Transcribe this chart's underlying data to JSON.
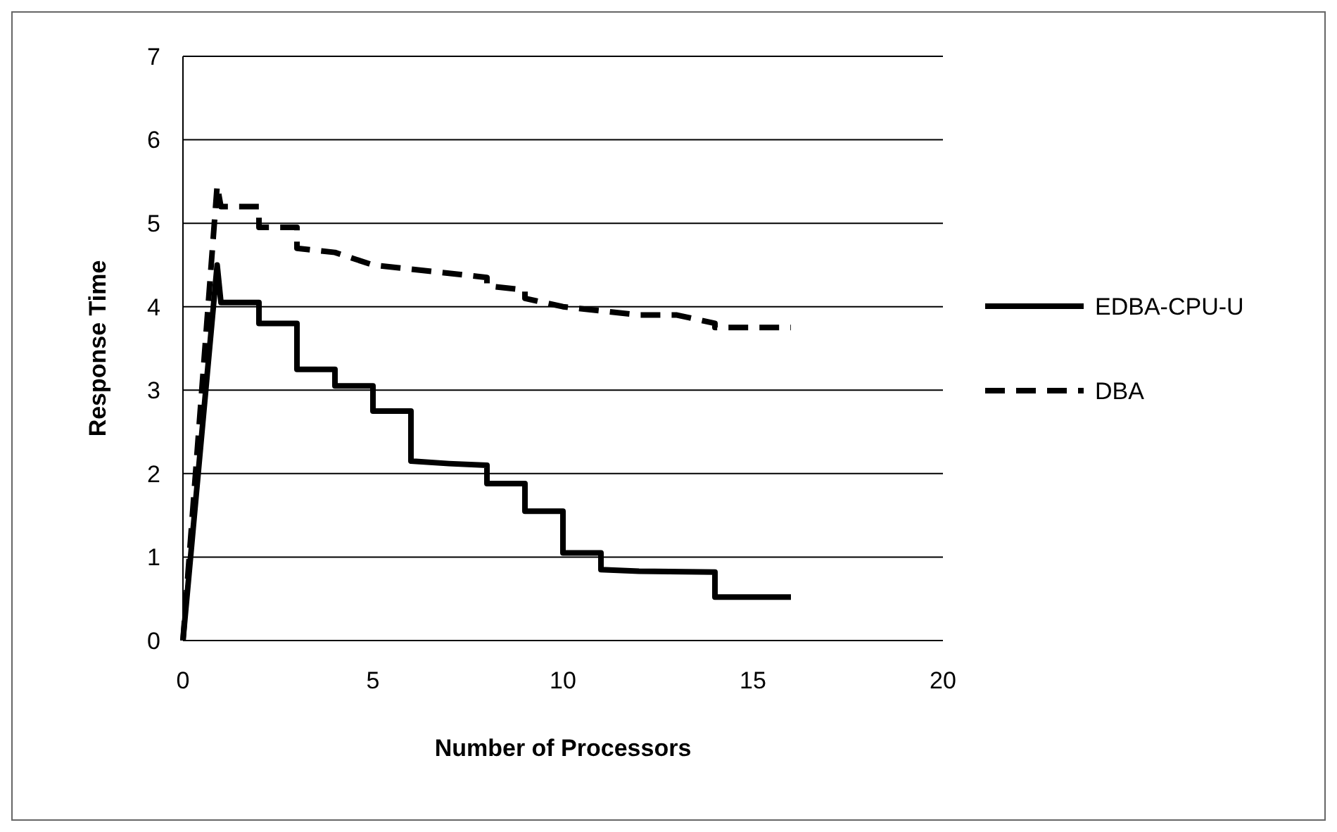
{
  "chart_data": {
    "type": "line",
    "xlabel": "Number of Processors",
    "ylabel": "Response Time",
    "xlim": [
      0,
      20
    ],
    "xticks": [
      0,
      5,
      10,
      15,
      20
    ],
    "ylim": [
      0,
      7
    ],
    "yticks": [
      0,
      1,
      2,
      3,
      4,
      5,
      6,
      7
    ],
    "grid": "y",
    "legend": "right",
    "marker": "none",
    "series": [
      {
        "name": "EDBA-CPU-U",
        "color": "#000000",
        "line_style": "solid",
        "x": [
          0,
          0.9,
          1,
          2,
          2,
          3,
          3,
          4,
          4,
          5,
          5,
          6,
          6,
          7,
          8,
          8,
          9,
          9,
          10,
          10,
          11,
          11,
          12,
          14,
          14,
          16
        ],
        "values": [
          0,
          4.5,
          4.05,
          4.05,
          3.8,
          3.8,
          3.25,
          3.25,
          3.05,
          3.05,
          2.75,
          2.75,
          2.15,
          2.12,
          2.1,
          1.88,
          1.88,
          1.55,
          1.55,
          1.05,
          1.05,
          0.85,
          0.83,
          0.82,
          0.52,
          0.52
        ]
      },
      {
        "name": "DBA",
        "color": "#000000",
        "line_style": "dashed",
        "x": [
          0,
          0.9,
          1,
          2,
          2,
          3,
          3,
          4,
          5,
          6,
          7,
          8,
          8,
          9,
          9,
          10,
          11,
          12,
          13,
          14,
          14,
          16
        ],
        "values": [
          0,
          5.45,
          5.2,
          5.2,
          4.95,
          4.95,
          4.7,
          4.65,
          4.5,
          4.45,
          4.4,
          4.35,
          4.25,
          4.2,
          4.1,
          4.0,
          3.95,
          3.9,
          3.9,
          3.8,
          3.75,
          3.75
        ]
      }
    ]
  }
}
